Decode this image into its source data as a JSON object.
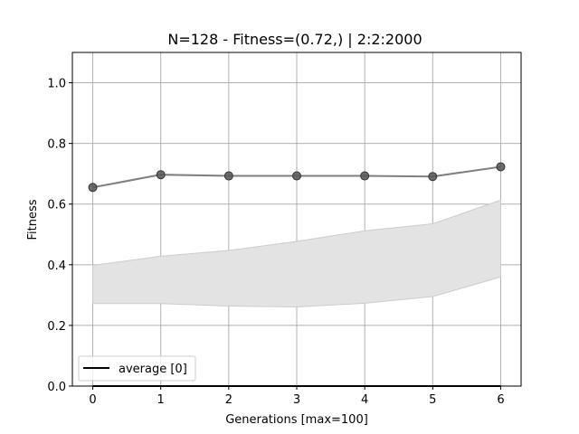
{
  "chart_data": {
    "type": "line",
    "title": "N=128  - Fitness=(0.72,) | 2:2:2000",
    "xlabel": "Generations [max=100]",
    "ylabel": "Fitness",
    "xlim": [
      -0.3,
      6.3
    ],
    "ylim": [
      0.0,
      1.1
    ],
    "x_ticks": [
      0,
      1,
      2,
      3,
      4,
      5,
      6
    ],
    "x_tick_labels": [
      "0",
      "1",
      "2",
      "3",
      "4",
      "5",
      "6"
    ],
    "y_ticks": [
      0.0,
      0.2,
      0.4,
      0.6,
      0.8,
      1.0
    ],
    "y_tick_labels": [
      "0.0",
      "0.2",
      "0.4",
      "0.6",
      "0.8",
      "1.0"
    ],
    "grid": true,
    "legend": {
      "placement": "lower-left",
      "entries": [
        "average [0]"
      ]
    },
    "x": [
      0,
      1,
      2,
      3,
      4,
      5,
      6
    ],
    "series": [
      {
        "name": "average [0]",
        "color": "#000000",
        "values": [
          0,
          0,
          0,
          0,
          0,
          0,
          0
        ]
      },
      {
        "color": "#7f7f7f",
        "marker": "circle",
        "values": [
          0.655,
          0.697,
          0.693,
          0.693,
          0.693,
          0.691,
          0.723
        ]
      }
    ],
    "band": {
      "color": "#e3e3e3",
      "edge_color": "#cccccc",
      "lower": [
        0.272,
        0.272,
        0.264,
        0.261,
        0.273,
        0.295,
        0.36
      ],
      "upper": [
        0.398,
        0.428,
        0.447,
        0.477,
        0.512,
        0.535,
        0.613
      ]
    }
  }
}
